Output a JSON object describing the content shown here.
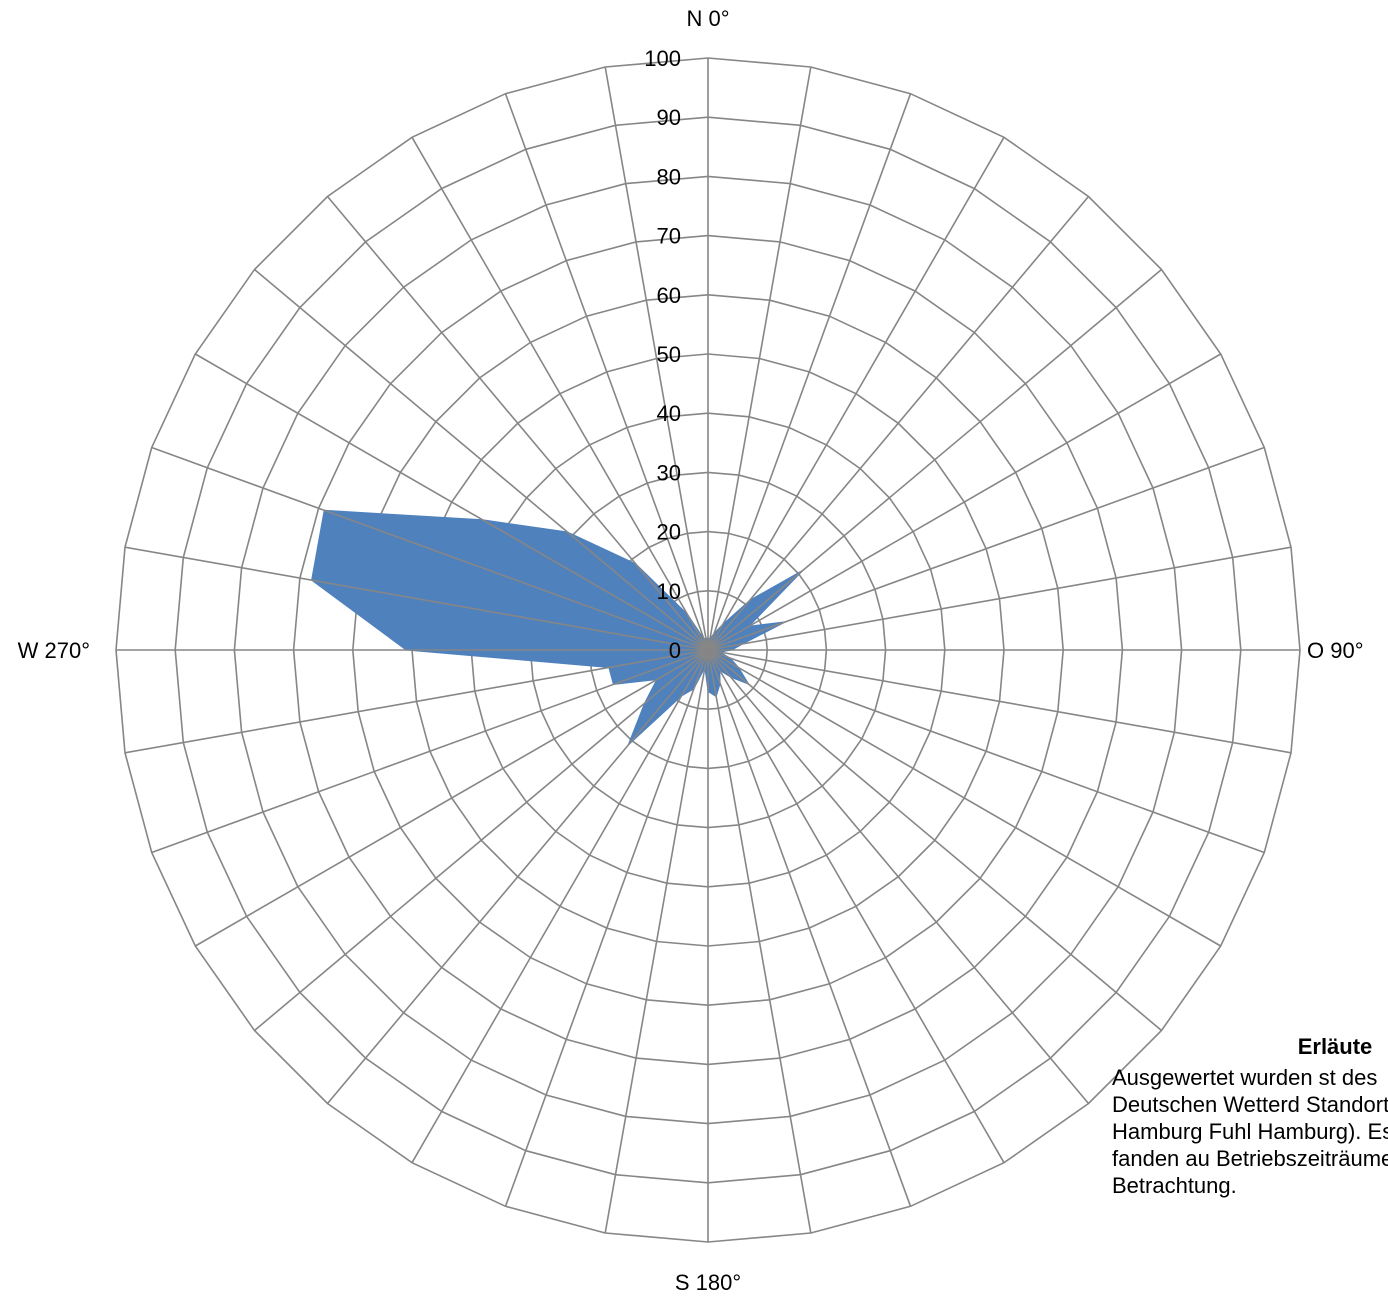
{
  "chart_data": {
    "type": "radar",
    "radial_ticks": [
      "0",
      "10",
      "20",
      "30",
      "40",
      "50",
      "60",
      "70",
      "80",
      "90",
      "100"
    ],
    "rmax": 100,
    "direction_labels": {
      "north": "N 0°",
      "east": "O 90°",
      "south": "S 180°",
      "west": "W 270°"
    },
    "angles_deg": [
      0,
      10,
      20,
      30,
      40,
      50,
      60,
      70,
      80,
      90,
      100,
      110,
      120,
      130,
      140,
      150,
      160,
      170,
      180,
      190,
      200,
      210,
      220,
      230,
      240,
      250,
      260,
      270,
      280,
      290,
      300,
      310,
      320,
      330,
      340,
      350
    ],
    "series": [
      {
        "color": "#4f81bd",
        "values": [
          2,
          2,
          3,
          5,
          11,
          21,
          8,
          14,
          6,
          4,
          2,
          4,
          6,
          9,
          6,
          4,
          6,
          8,
          7,
          3,
          7,
          9,
          21,
          14,
          10,
          17,
          17,
          51,
          68,
          69,
          44,
          31,
          19,
          7,
          2,
          2
        ]
      }
    ],
    "grid": true,
    "legend": "none"
  },
  "note": {
    "title": "Erläute",
    "body": "Ausgewertet wurden st des Deutschen Wetterd Standort Hamburg Fuhl Hamburg). Es fanden au Betriebszeiträume des Betrachtung."
  }
}
